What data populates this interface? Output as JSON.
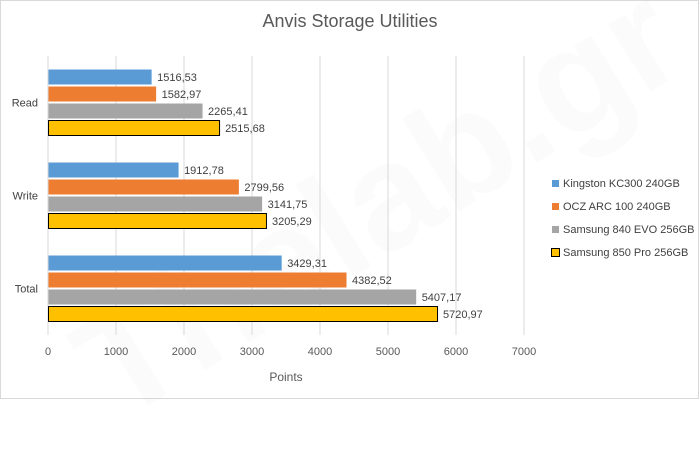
{
  "chart_data": {
    "type": "bar",
    "orientation": "horizontal",
    "title": "Anvis Storage Utilities",
    "xlabel": "Points",
    "ylabel": "",
    "categories": [
      "Read",
      "Write",
      "Total"
    ],
    "xlim": [
      0,
      7000
    ],
    "xticks": [
      0,
      1000,
      2000,
      3000,
      4000,
      5000,
      6000,
      7000
    ],
    "grid": true,
    "legend_position": "right",
    "series": [
      {
        "name": "Kingston KC300 240GB",
        "color": "#5b9bd5",
        "values": [
          1516.53,
          1912.78,
          3429.31
        ],
        "labels": [
          "1516,53",
          "1912,78",
          "3429,31"
        ]
      },
      {
        "name": "OCZ ARC 100 240GB",
        "color": "#ed7d31",
        "values": [
          1582.97,
          2799.56,
          4382.52
        ],
        "labels": [
          "1582,97",
          "2799,56",
          "4382,52"
        ]
      },
      {
        "name": "Samsung 840 EVO 256GB",
        "color": "#a5a5a5",
        "values": [
          2265.41,
          3141.75,
          5407.17
        ],
        "labels": [
          "2265,41",
          "3141,75",
          "5407,17"
        ]
      },
      {
        "name": "Samsung 850 Pro 256GB",
        "color": "#ffc000",
        "border": "#000000",
        "values": [
          2515.68,
          3205.29,
          5720.97
        ],
        "labels": [
          "2515,68",
          "3205,29",
          "5720,97"
        ]
      }
    ],
    "watermark": "Thelab.gr"
  }
}
